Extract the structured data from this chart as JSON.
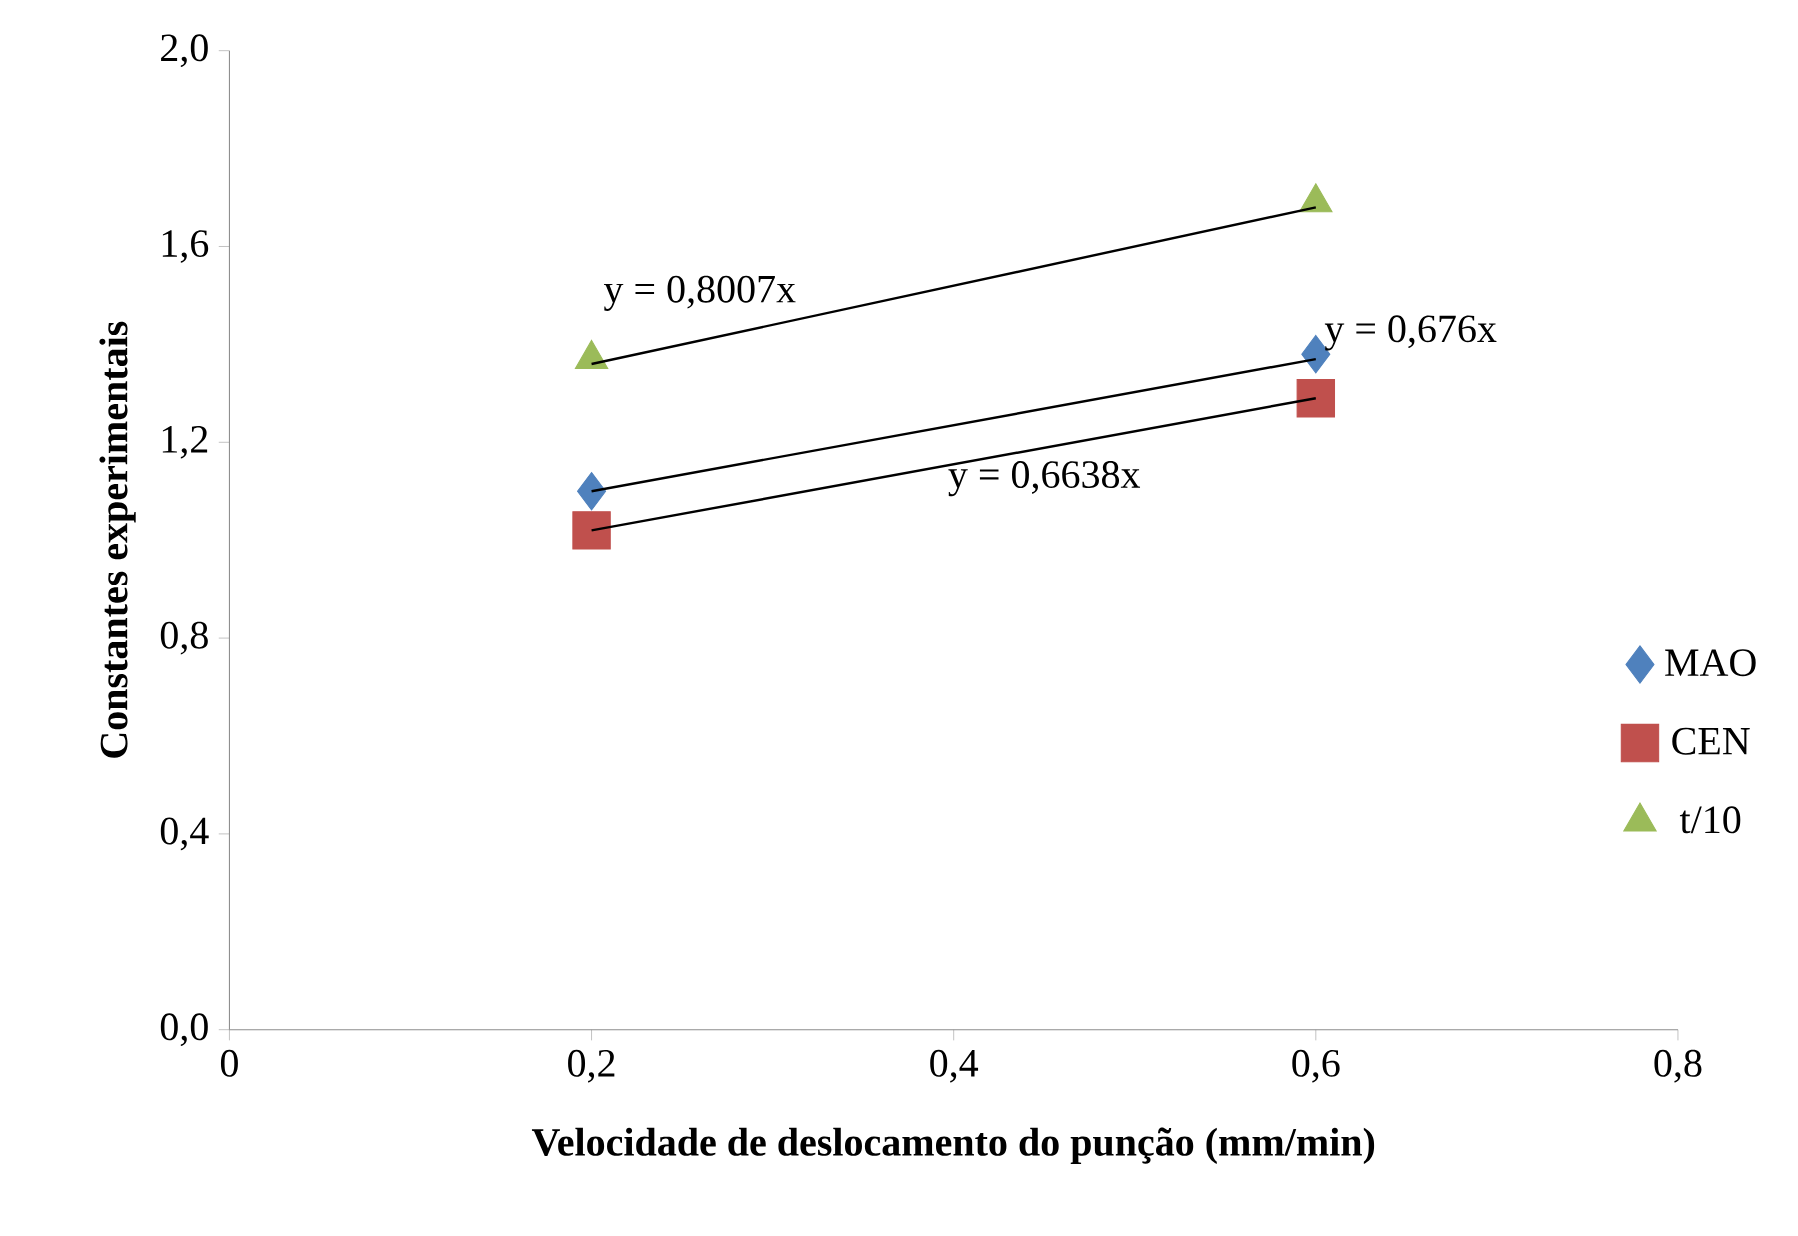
{
  "chart_data": {
    "type": "scatter",
    "xlabel": "Velocidade de deslocamento do punção (mm/min)",
    "ylabel": "Constantes experimentais",
    "x": [
      0.2,
      0.6
    ],
    "series": [
      {
        "name": "MAO",
        "color": "#4f81bd",
        "marker": "diamond",
        "values": [
          1.1,
          1.38
        ]
      },
      {
        "name": "CEN",
        "color": "#c0504d",
        "marker": "square",
        "values": [
          1.02,
          1.29
        ]
      },
      {
        "name": "t/10",
        "color": "#9bbb59",
        "marker": "triangle",
        "values": [
          1.37,
          1.69
        ]
      },
      {
        "type": "line",
        "color": "#000000",
        "values": [
          1.36,
          1.68
        ]
      },
      {
        "type": "line",
        "color": "#000000",
        "values": [
          1.1,
          1.37
        ]
      },
      {
        "type": "line",
        "color": "#000000",
        "values": [
          1.02,
          1.29
        ]
      }
    ],
    "annotations": [
      {
        "text": "y = 0,8007x",
        "x": 0.3,
        "y": 1.44
      },
      {
        "text": "y = 0,676x",
        "x": 0.6,
        "y": 1.37
      },
      {
        "text": "y = 0,6638x",
        "x": 0.45,
        "y": 1.19
      }
    ],
    "xlim": [
      0,
      0.8
    ],
    "ylim": [
      0,
      2.0
    ],
    "xticks": [
      0,
      {
        "value": 0.2,
        "label": "0,2"
      },
      {
        "value": 0.4,
        "label": "0,4"
      },
      {
        "value": 0.6,
        "label": "0,6"
      },
      {
        "value": 0.8,
        "label": "0,8"
      }
    ],
    "yticks": [
      {
        "value": 0,
        "label": "0,0"
      },
      {
        "value": 0.4,
        "label": "0,4"
      },
      {
        "value": 0.8,
        "label": "0,8"
      },
      {
        "value": 1.2,
        "label": "1,2"
      },
      {
        "value": 1.6,
        "label": "1,6"
      },
      {
        "value": 2.0,
        "label": "2,0"
      }
    ],
    "legend": "right",
    "grid": false
  }
}
